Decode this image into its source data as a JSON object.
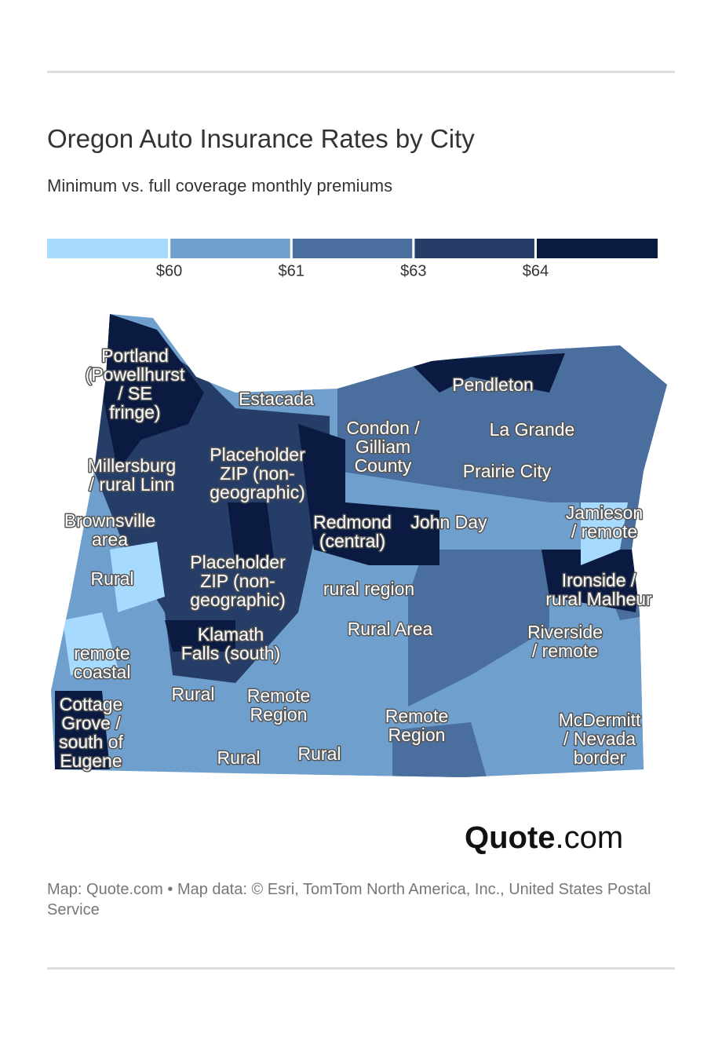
{
  "header": {
    "title": "Oregon Auto Insurance Rates by City",
    "subtitle": "Minimum vs. full coverage monthly premiums"
  },
  "legend": {
    "colors": [
      "#a6dbff",
      "#6f9fcc",
      "#4a6f9e",
      "#263d68",
      "#0b1a40"
    ],
    "ticks": [
      {
        "value": 60,
        "label": "$60"
      },
      {
        "value": 61,
        "label": "$61"
      },
      {
        "value": 63,
        "label": "$63"
      },
      {
        "value": 64,
        "label": "$64"
      }
    ]
  },
  "map": {
    "labels": [
      [
        "Portland",
        "(Powellhurst",
        "/ SE",
        "fringe)"
      ],
      [
        "Estacada"
      ],
      [
        "Condon /",
        "Gilliam",
        "County"
      ],
      [
        "Pendleton"
      ],
      [
        "La Grande"
      ],
      [
        "Millersburg",
        "/ rural Linn"
      ],
      [
        "Placeholder",
        "ZIP (non-",
        "geographic)"
      ],
      [
        "Prairie City"
      ],
      [
        "Brownsville",
        "area"
      ],
      [
        "Redmond",
        "(central)"
      ],
      [
        "John Day"
      ],
      [
        "Jamieson",
        "/ remote"
      ],
      [
        "Rural"
      ],
      [
        "Placeholder",
        "ZIP (non-",
        "geographic)"
      ],
      [
        "rural region"
      ],
      [
        "Ironside /",
        "rural Malheur"
      ],
      [
        "Klamath",
        "Falls (south)"
      ],
      [
        "Rural Area"
      ],
      [
        "Riverside",
        "/ remote"
      ],
      [
        "remote",
        "coastal"
      ],
      [
        "Rural"
      ],
      [
        "Remote",
        "Region"
      ],
      [
        "Cottage",
        "Grove /",
        "south of",
        "Eugene"
      ],
      [
        "Remote",
        "Region"
      ],
      [
        "McDermitt",
        "/ Nevada",
        "border"
      ],
      [
        "Rural"
      ],
      [
        "Rural"
      ]
    ]
  },
  "brand": {
    "name": "Quote",
    "suffix": ".com"
  },
  "footer": {
    "credit": "Map: Quote.com • Map data: © Esri, TomTom North America, Inc., United States Postal Service"
  }
}
